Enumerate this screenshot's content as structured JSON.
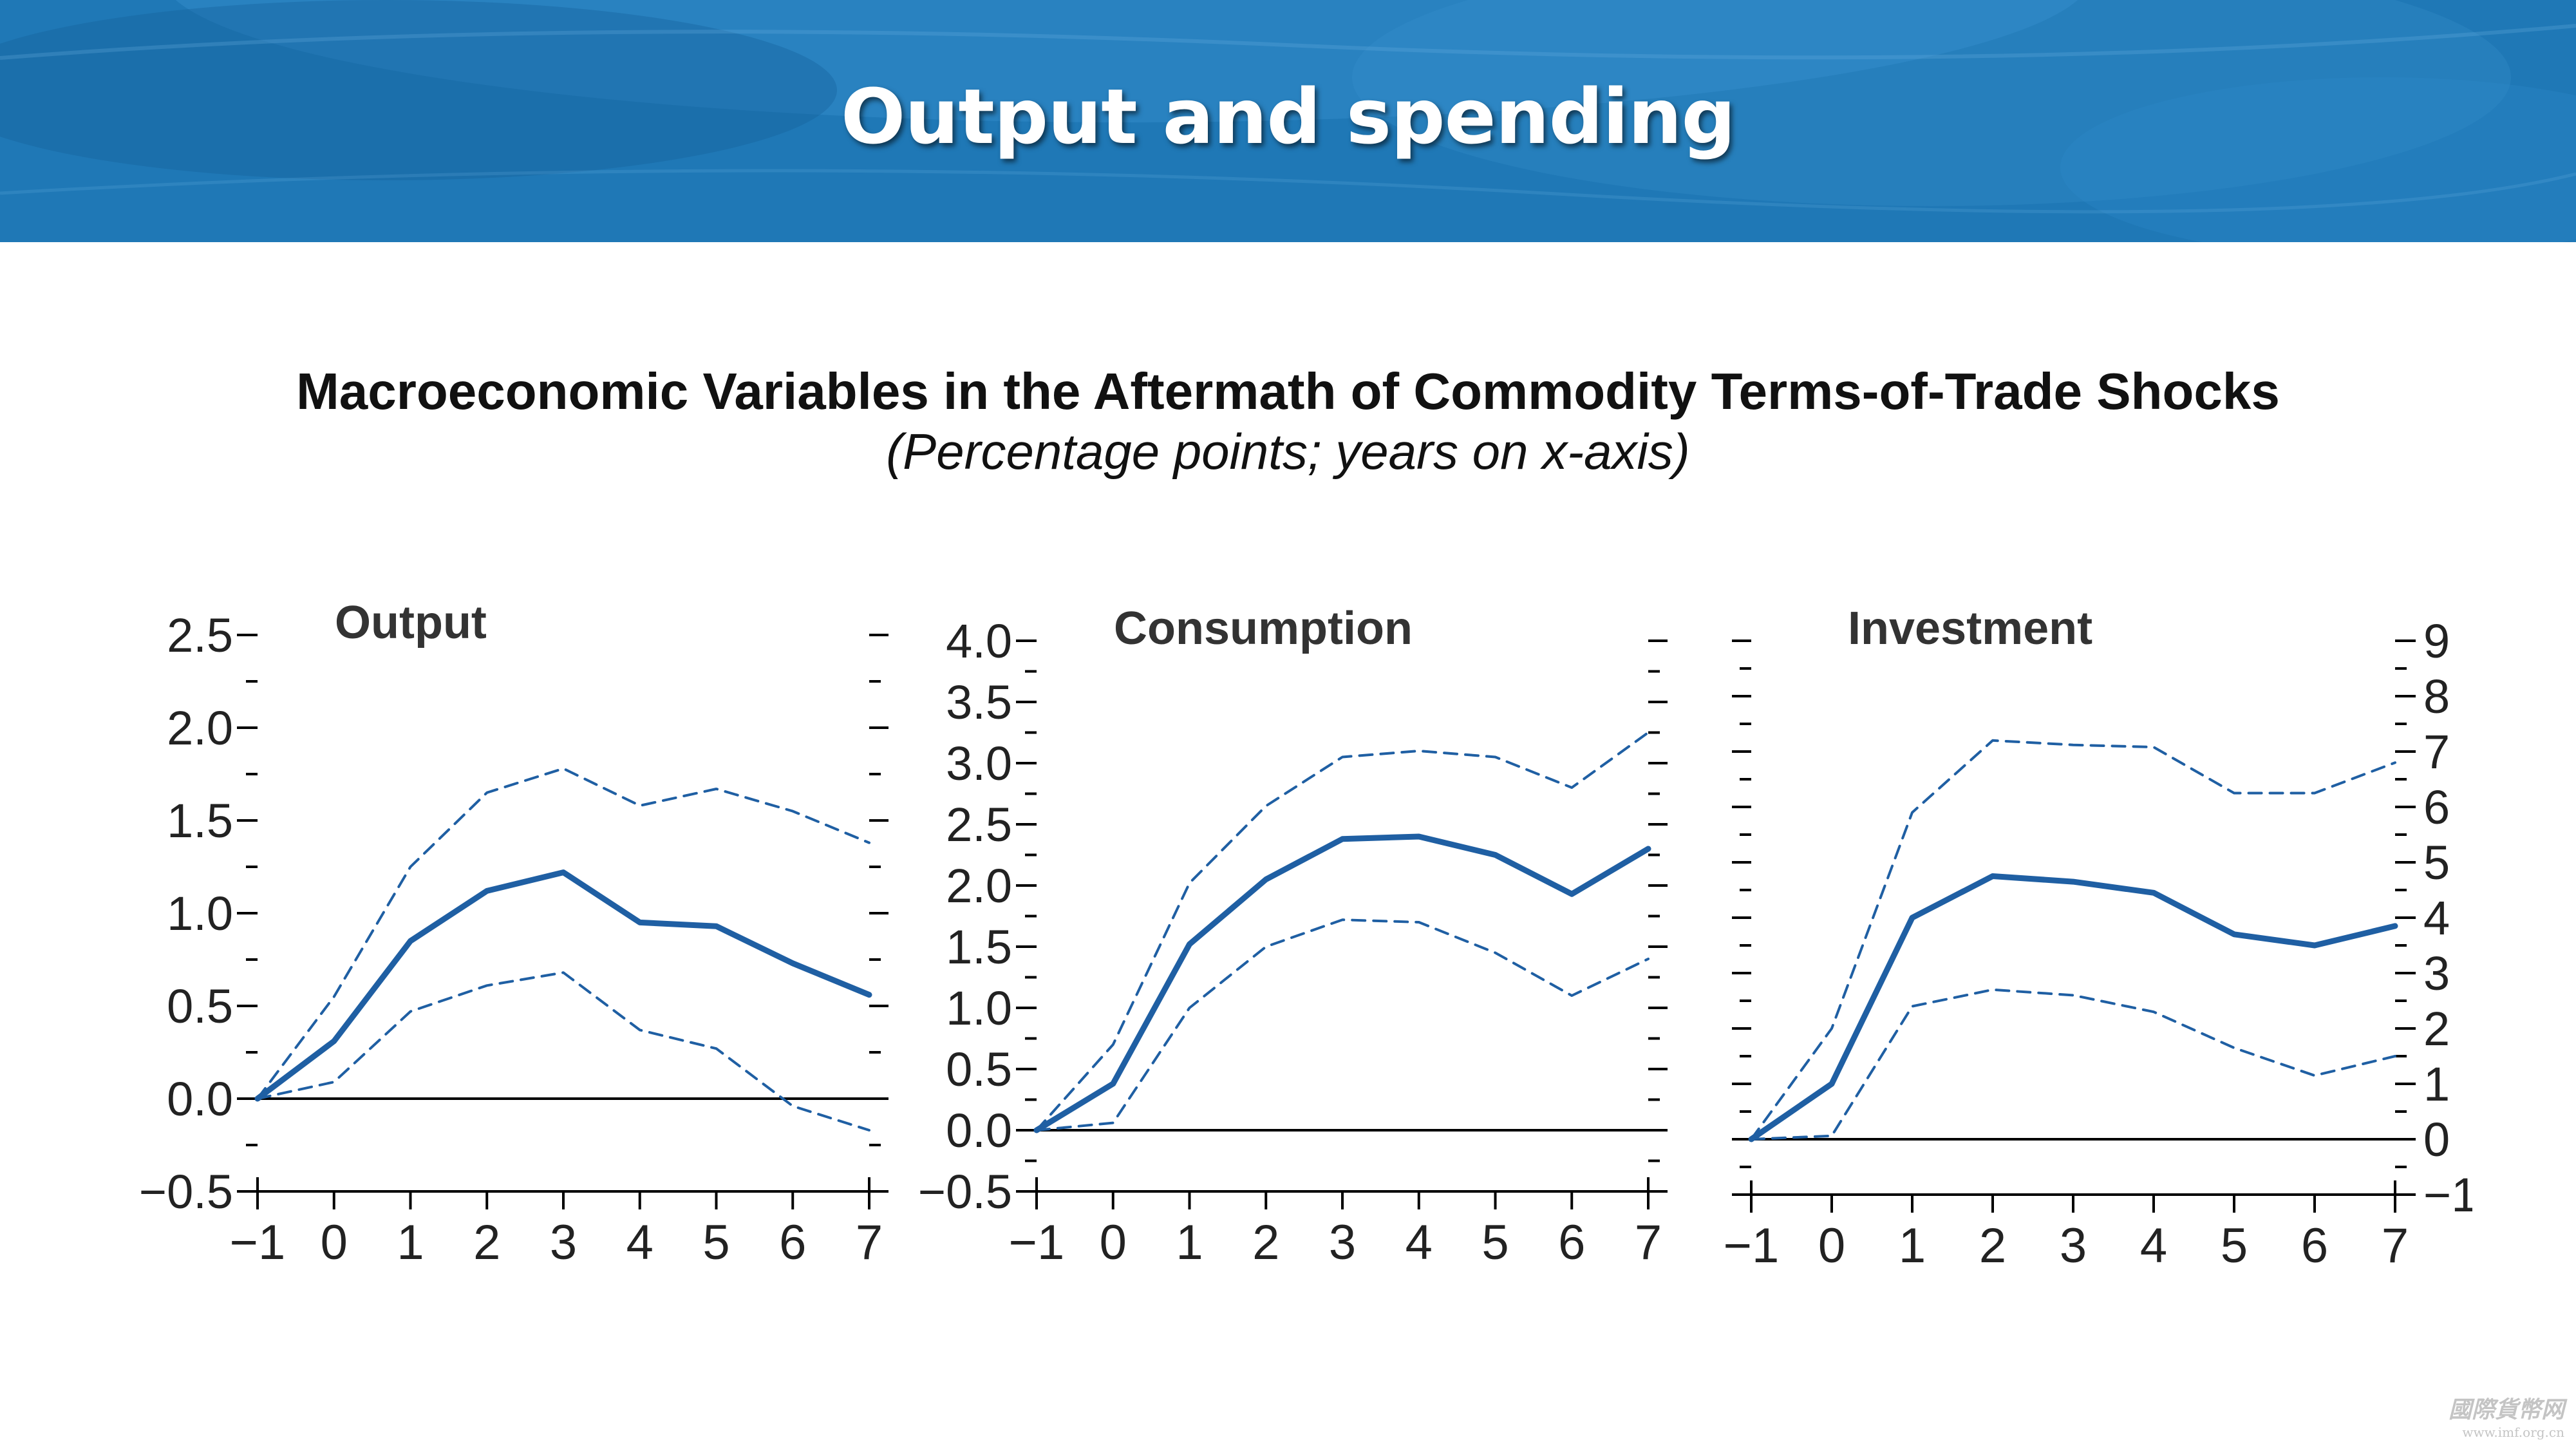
{
  "slide": {
    "title": "Output and spending"
  },
  "figure": {
    "title": "Macroeconomic Variables in the Aftermath of Commodity Terms-of-Trade Shocks",
    "subtitle": "(Percentage points; years on x-axis)"
  },
  "watermark": {
    "main": "國際貨幣网",
    "url": "www.imf.org.cn"
  },
  "colors": {
    "banner": "#1b79b8",
    "series": "#1f5fa3",
    "text": "#111111"
  },
  "chart_data": [
    {
      "type": "line",
      "title": "Output",
      "x": [
        -1,
        0,
        1,
        2,
        3,
        4,
        5,
        6,
        7
      ],
      "xtick_labels": [
        "−1",
        "0",
        "1",
        "2",
        "3",
        "4",
        "5",
        "6",
        "7"
      ],
      "xlim": [
        -1,
        7
      ],
      "ylim": [
        -0.5,
        2.5
      ],
      "y_axis_side": "left",
      "yticks": [
        -0.5,
        0.0,
        0.5,
        1.0,
        1.5,
        2.0,
        2.5
      ],
      "ytick_labels": [
        "−0.5",
        "0.0",
        "0.5",
        "1.0",
        "1.5",
        "2.0",
        "2.5"
      ],
      "series": [
        {
          "role": "estimate",
          "style": "solid",
          "values": [
            0.0,
            0.31,
            0.85,
            1.12,
            1.22,
            0.95,
            0.93,
            0.73,
            0.56
          ]
        },
        {
          "role": "upper band",
          "style": "dashed",
          "values": [
            0.0,
            0.55,
            1.25,
            1.65,
            1.78,
            1.58,
            1.67,
            1.55,
            1.38
          ]
        },
        {
          "role": "lower band",
          "style": "dashed",
          "values": [
            0.0,
            0.09,
            0.47,
            0.61,
            0.68,
            0.37,
            0.27,
            -0.04,
            -0.17
          ]
        }
      ]
    },
    {
      "type": "line",
      "title": "Consumption",
      "x": [
        -1,
        0,
        1,
        2,
        3,
        4,
        5,
        6,
        7
      ],
      "xtick_labels": [
        "−1",
        "0",
        "1",
        "2",
        "3",
        "4",
        "5",
        "6",
        "7"
      ],
      "xlim": [
        -1,
        7
      ],
      "ylim": [
        -0.5,
        4.0
      ],
      "y_axis_side": "left",
      "yticks": [
        -0.5,
        0.0,
        0.5,
        1.0,
        1.5,
        2.0,
        2.5,
        3.0,
        3.5,
        4.0
      ],
      "ytick_labels": [
        "−0.5",
        "0.0",
        "0.5",
        "1.0",
        "1.5",
        "2.0",
        "2.5",
        "3.0",
        "3.5",
        "4.0"
      ],
      "series": [
        {
          "role": "estimate",
          "style": "solid",
          "values": [
            0.0,
            0.38,
            1.52,
            2.05,
            2.38,
            2.4,
            2.25,
            1.93,
            2.3
          ]
        },
        {
          "role": "upper band",
          "style": "dashed",
          "values": [
            0.0,
            0.7,
            2.02,
            2.65,
            3.05,
            3.1,
            3.05,
            2.8,
            3.25
          ]
        },
        {
          "role": "lower band",
          "style": "dashed",
          "values": [
            0.0,
            0.06,
            1.0,
            1.5,
            1.72,
            1.7,
            1.45,
            1.1,
            1.4
          ]
        }
      ]
    },
    {
      "type": "line",
      "title": "Investment",
      "x": [
        -1,
        0,
        1,
        2,
        3,
        4,
        5,
        6,
        7
      ],
      "xtick_labels": [
        "−1",
        "0",
        "1",
        "2",
        "3",
        "4",
        "5",
        "6",
        "7"
      ],
      "xlim": [
        -1,
        7
      ],
      "ylim": [
        -1,
        9
      ],
      "y_axis_side": "right",
      "yticks": [
        -1,
        0,
        1,
        2,
        3,
        4,
        5,
        6,
        7,
        8,
        9
      ],
      "ytick_labels": [
        "−1",
        "0",
        "1",
        "2",
        "3",
        "4",
        "5",
        "6",
        "7",
        "8",
        "9"
      ],
      "series": [
        {
          "role": "estimate",
          "style": "solid",
          "values": [
            0.0,
            1.0,
            4.0,
            4.75,
            4.65,
            4.45,
            3.7,
            3.5,
            3.85
          ]
        },
        {
          "role": "upper band",
          "style": "dashed",
          "values": [
            0.0,
            2.0,
            5.9,
            7.2,
            7.12,
            7.08,
            6.25,
            6.25,
            6.8
          ]
        },
        {
          "role": "lower band",
          "style": "dashed",
          "values": [
            0.0,
            0.06,
            2.4,
            2.7,
            2.6,
            2.3,
            1.65,
            1.15,
            1.5
          ]
        }
      ]
    }
  ]
}
